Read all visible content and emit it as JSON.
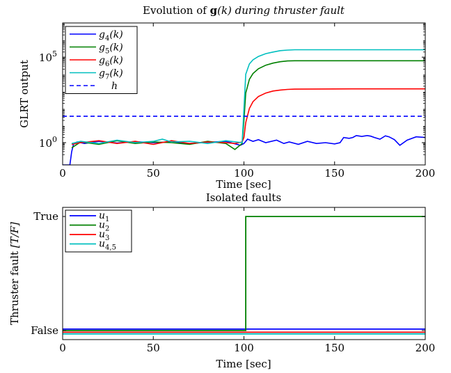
{
  "chart_data": [
    {
      "type": "line",
      "title": "Evolution of g(k) during thruster fault",
      "title_parts": {
        "prefix": "Evolution of ",
        "bold": "g",
        "suffix": "(k) during thruster fault"
      },
      "xlabel": "Time [sec]",
      "ylabel": "GLRT output",
      "xlim": [
        0,
        200
      ],
      "ylim": [
        0.05,
        10000000
      ],
      "yscale": "log",
      "xticks": [
        {
          "v": 0,
          "label": "0"
        },
        {
          "v": 50,
          "label": "50"
        },
        {
          "v": 100,
          "label": "100"
        },
        {
          "v": 150,
          "label": "150"
        },
        {
          "v": 200,
          "label": "200"
        }
      ],
      "yticks": [
        {
          "v": 1,
          "base": "10",
          "exp": "0"
        },
        {
          "v": 100000,
          "base": "10",
          "exp": "5"
        }
      ],
      "legend_position": "top-left",
      "threshold": {
        "name": "h",
        "value": 35,
        "style": "dashed",
        "color": "#0000ff"
      },
      "series": [
        {
          "name": "g4(k)",
          "label_base": "g",
          "label_sub": "4",
          "label_suffix": "(k)",
          "color": "#0000ff",
          "x": [
            0,
            4,
            5,
            6,
            8,
            12,
            20,
            30,
            40,
            50,
            60,
            70,
            80,
            90,
            98,
            100,
            102,
            105,
            108,
            112,
            118,
            122,
            125,
            130,
            135,
            140,
            145,
            150,
            153,
            155,
            158,
            160,
            162,
            165,
            168,
            170,
            172,
            175,
            178,
            180,
            183,
            186,
            190,
            195,
            200
          ],
          "y": [
            0.05,
            0.05,
            0.3,
            0.8,
            1.1,
            0.9,
            1.2,
            0.95,
            1.15,
            1.0,
            1.1,
            0.9,
            1.05,
            1.2,
            0.7,
            0.9,
            1.6,
            1.2,
            1.5,
            1.0,
            1.4,
            0.9,
            1.1,
            0.8,
            1.2,
            0.9,
            1.0,
            0.85,
            1.0,
            2.0,
            1.8,
            2.0,
            2.6,
            2.3,
            2.6,
            2.4,
            2.0,
            1.6,
            2.5,
            2.2,
            1.5,
            0.7,
            1.4,
            2.2,
            2.0
          ]
        },
        {
          "name": "g5(k)",
          "label_base": "g",
          "label_sub": "5",
          "label_suffix": "(k)",
          "color": "#008000",
          "x": [
            5,
            10,
            20,
            30,
            40,
            50,
            60,
            70,
            80,
            90,
            95,
            99,
            100,
            101,
            103,
            105,
            108,
            112,
            116,
            120,
            124,
            128,
            135,
            150,
            170,
            200
          ],
          "y": [
            0.5,
            1.1,
            0.8,
            1.3,
            0.9,
            1.1,
            1.0,
            0.8,
            1.2,
            0.9,
            0.4,
            0.9,
            20,
            800,
            5000,
            11000,
            21000,
            34000,
            45000,
            54000,
            60000,
            62000,
            62000,
            62000,
            62000,
            62000
          ]
        },
        {
          "name": "g6(k)",
          "label_base": "g",
          "label_sub": "6",
          "label_suffix": "(k)",
          "color": "#ff0000",
          "x": [
            5,
            10,
            20,
            30,
            40,
            50,
            60,
            70,
            80,
            90,
            95,
            99,
            100,
            101,
            103,
            105,
            108,
            112,
            116,
            120,
            124,
            128,
            140,
            160,
            180,
            200
          ],
          "y": [
            0.8,
            1.0,
            1.3,
            0.9,
            1.2,
            0.8,
            1.3,
            0.9,
            1.1,
            1.0,
            0.9,
            1.1,
            2,
            15,
            100,
            250,
            500,
            800,
            1050,
            1200,
            1300,
            1350,
            1380,
            1400,
            1400,
            1400
          ]
        },
        {
          "name": "g7(k)",
          "label_base": "g",
          "label_sub": "7",
          "label_suffix": "(k)",
          "color": "#00bfbf",
          "x": [
            5,
            10,
            20,
            30,
            40,
            50,
            55,
            60,
            70,
            80,
            90,
            99,
            100,
            101,
            103,
            105,
            108,
            112,
            116,
            120,
            124,
            128,
            140,
            160,
            180,
            200
          ],
          "y": [
            0.9,
            1.2,
            0.9,
            1.4,
            1.0,
            1.2,
            1.6,
            1.1,
            1.2,
            0.9,
            1.3,
            1.0,
            100,
            10000,
            40000,
            70000,
            110000,
            160000,
            200000,
            240000,
            260000,
            270000,
            270000,
            270000,
            270000,
            270000
          ]
        }
      ]
    },
    {
      "type": "line",
      "title": "Isolated faults",
      "xlabel": "Time [sec]",
      "ylabel": "Thruster fault [T/F]",
      "ylabel_parts": {
        "text": "Thruster fault ",
        "math": "[T/F]"
      },
      "xlim": [
        0,
        200
      ],
      "ylim": [
        -0.08,
        1.08
      ],
      "xticks": [
        {
          "v": 0,
          "label": "0"
        },
        {
          "v": 50,
          "label": "50"
        },
        {
          "v": 100,
          "label": "100"
        },
        {
          "v": 150,
          "label": "150"
        },
        {
          "v": 200,
          "label": "200"
        }
      ],
      "yticks": [
        {
          "v": 0,
          "label": "False"
        },
        {
          "v": 1,
          "label": "True"
        }
      ],
      "legend_position": "top-left",
      "series": [
        {
          "name": "u1",
          "label_base": "u",
          "label_sub": "1",
          "color": "#0000ff",
          "x": [
            0,
            200
          ],
          "y": [
            0.012,
            0.012
          ]
        },
        {
          "name": "u2",
          "label_base": "u",
          "label_sub": "2",
          "color": "#008000",
          "x": [
            0,
            101,
            101,
            200
          ],
          "y": [
            0,
            0,
            1,
            1
          ]
        },
        {
          "name": "u3",
          "label_base": "u",
          "label_sub": "3",
          "color": "#ff0000",
          "x": [
            0,
            200
          ],
          "y": [
            -0.015,
            -0.015
          ]
        },
        {
          "name": "u4,5",
          "label_base": "u",
          "label_sub": "4,5",
          "color": "#00bfbf",
          "x": [
            0,
            200
          ],
          "y": [
            -0.03,
            -0.03
          ]
        }
      ]
    }
  ]
}
